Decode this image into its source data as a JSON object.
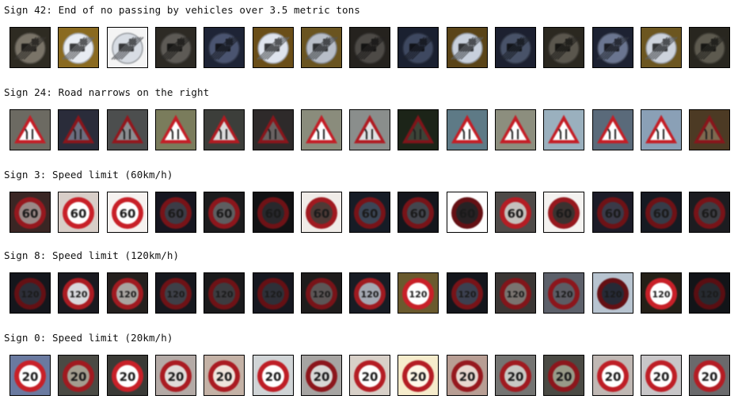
{
  "groups": [
    {
      "label": "Sign 42: End of no passing by vehicles over 3.5 metric tons",
      "kind": "end-no-passing",
      "images": [
        {
          "bg": "#2e2b22",
          "fg": "#7a7468",
          "b": 0.85
        },
        {
          "bg": "#8a6a20",
          "fg": "#e8ecf2",
          "b": 1.0
        },
        {
          "bg": "#f4f4f4",
          "fg": "#d8dde4",
          "b": 1.0
        },
        {
          "bg": "#2d2a24",
          "fg": "#5d5a55",
          "b": 0.75
        },
        {
          "bg": "#1e2436",
          "fg": "#4a5470",
          "b": 0.8
        },
        {
          "bg": "#6a4e18",
          "fg": "#dfe4ee",
          "b": 1.0
        },
        {
          "bg": "#6a5420",
          "fg": "#b8bec8",
          "b": 0.95
        },
        {
          "bg": "#25221e",
          "fg": "#4d4a46",
          "b": 0.75
        },
        {
          "bg": "#1a2030",
          "fg": "#3e4860",
          "b": 0.75
        },
        {
          "bg": "#5a4418",
          "fg": "#c8d0dc",
          "b": 0.95
        },
        {
          "bg": "#1c2030",
          "fg": "#485268",
          "b": 0.8
        },
        {
          "bg": "#2b2820",
          "fg": "#5a564d",
          "b": 0.75
        },
        {
          "bg": "#1d2232",
          "fg": "#6a7590",
          "b": 0.85
        },
        {
          "bg": "#6c5620",
          "fg": "#cdd3dc",
          "b": 1.0
        },
        {
          "bg": "#28261f",
          "fg": "#5d5a4f",
          "b": 0.8
        }
      ]
    },
    {
      "label": "Sign 24: Road narrows on the right",
      "kind": "triangle",
      "images": [
        {
          "bg": "#6c6a62",
          "fg": "#ffffff",
          "b": 1.0
        },
        {
          "bg": "#2a2c3a",
          "fg": "#6c6e80",
          "b": 0.7
        },
        {
          "bg": "#4c4e4e",
          "fg": "#8c8e92",
          "b": 0.75
        },
        {
          "bg": "#7a7c5c",
          "fg": "#ffffff",
          "b": 1.0
        },
        {
          "bg": "#3c3e3a",
          "fg": "#dcdcdc",
          "b": 0.9
        },
        {
          "bg": "#2e2a2a",
          "fg": "#6a6262",
          "b": 0.7
        },
        {
          "bg": "#8a8c7c",
          "fg": "#ffffff",
          "b": 1.0
        },
        {
          "bg": "#8a8e8c",
          "fg": "#e0e2e4",
          "b": 0.9
        },
        {
          "bg": "#1c2418",
          "fg": "#3c4438",
          "b": 0.65
        },
        {
          "bg": "#5e7a86",
          "fg": "#ffffff",
          "b": 1.0
        },
        {
          "bg": "#8c8e7e",
          "fg": "#ffffff",
          "b": 1.0
        },
        {
          "bg": "#9ab0be",
          "fg": "#ffffff",
          "b": 1.0
        },
        {
          "bg": "#5a6a7a",
          "fg": "#ffffff",
          "b": 1.0
        },
        {
          "bg": "#8aa0b6",
          "fg": "#ffffff",
          "b": 1.0
        },
        {
          "bg": "#4c3a24",
          "fg": "#7e6a50",
          "b": 0.7
        }
      ]
    },
    {
      "label": "Sign 3: Speed limit (60km/h)",
      "kind": "speed",
      "text": "60",
      "images": [
        {
          "bg": "#3a2624",
          "fg": "#9a8886",
          "b": 0.75
        },
        {
          "bg": "#d8cec8",
          "fg": "#ffffff",
          "b": 1.0
        },
        {
          "bg": "#f6f2f0",
          "fg": "#ffffff",
          "b": 1.0
        },
        {
          "bg": "#161620",
          "fg": "#3c3c46",
          "b": 0.6
        },
        {
          "bg": "#1c1c1e",
          "fg": "#5e5e60",
          "b": 0.7
        },
        {
          "bg": "#121214",
          "fg": "#28282c",
          "b": 0.55
        },
        {
          "bg": "#f0ece8",
          "fg": "#4e3a36",
          "b": 0.8
        },
        {
          "bg": "#161c26",
          "fg": "#3c4656",
          "b": 0.6
        },
        {
          "bg": "#14161c",
          "fg": "#44464e",
          "b": 0.6
        },
        {
          "bg": "#fefefe",
          "fg": "#262224",
          "b": 0.5
        },
        {
          "bg": "#4e4a48",
          "fg": "#c4c0bc",
          "b": 0.9
        },
        {
          "bg": "#f4f2f0",
          "fg": "#3a3230",
          "b": 0.75
        },
        {
          "bg": "#1c1c28",
          "fg": "#3a3a48",
          "b": 0.55
        },
        {
          "bg": "#161a22",
          "fg": "#363c48",
          "b": 0.55
        },
        {
          "bg": "#1c1c20",
          "fg": "#3e3e44",
          "b": 0.6
        }
      ]
    },
    {
      "label": "Sign 8: Speed limit (120km/h)",
      "kind": "speed",
      "text": "120",
      "images": [
        {
          "bg": "#14161c",
          "fg": "#2c2e38",
          "b": 0.5
        },
        {
          "bg": "#1a1a20",
          "fg": "#d8d8dc",
          "b": 0.85
        },
        {
          "bg": "#24201e",
          "fg": "#a8a4a0",
          "b": 0.8
        },
        {
          "bg": "#16181e",
          "fg": "#3e4048",
          "b": 0.55
        },
        {
          "bg": "#1a1a1c",
          "fg": "#3c3c40",
          "b": 0.55
        },
        {
          "bg": "#161820",
          "fg": "#2e3038",
          "b": 0.5
        },
        {
          "bg": "#1e1c1c",
          "fg": "#5c5656",
          "b": 0.6
        },
        {
          "bg": "#181c24",
          "fg": "#a4a8b2",
          "b": 0.8
        },
        {
          "bg": "#6a5a2e",
          "fg": "#ffffff",
          "b": 1.0
        },
        {
          "bg": "#14161c",
          "fg": "#3c4050",
          "b": 0.6
        },
        {
          "bg": "#3a3634",
          "fg": "#7a7470",
          "b": 0.65
        },
        {
          "bg": "#5c606a",
          "fg": "#5c5c64",
          "b": 0.7
        },
        {
          "bg": "#b8c4d0",
          "fg": "#262a36",
          "b": 0.5
        },
        {
          "bg": "#242018",
          "fg": "#ffffff",
          "b": 1.0
        },
        {
          "bg": "#121418",
          "fg": "#262a30",
          "b": 0.45
        }
      ]
    },
    {
      "label": "Sign 0: Speed limit (20km/h)",
      "kind": "speed",
      "text": "20",
      "images": [
        {
          "bg": "#6a7aa0",
          "fg": "#ffffff",
          "b": 1.0
        },
        {
          "bg": "#4a4a44",
          "fg": "#a49e90",
          "b": 0.8
        },
        {
          "bg": "#3a3a36",
          "fg": "#ffffff",
          "b": 1.0
        },
        {
          "bg": "#b4aaa6",
          "fg": "#e0dcda",
          "b": 0.85
        },
        {
          "bg": "#c4b2a6",
          "fg": "#efe4dc",
          "b": 0.85
        },
        {
          "bg": "#d0d4d6",
          "fg": "#ffffff",
          "b": 0.95
        },
        {
          "bg": "#a6a4a2",
          "fg": "#d8d8d6",
          "b": 0.7
        },
        {
          "bg": "#d8d0c8",
          "fg": "#ffffff",
          "b": 0.9
        },
        {
          "bg": "#f6eccc",
          "fg": "#fff8e8",
          "b": 0.9
        },
        {
          "bg": "#b89e94",
          "fg": "#e8d8d0",
          "b": 0.75
        },
        {
          "bg": "#747472",
          "fg": "#c8c8c4",
          "b": 0.8
        },
        {
          "bg": "#4a4a44",
          "fg": "#989a88",
          "b": 0.7
        },
        {
          "bg": "#c0b8b4",
          "fg": "#ffffff",
          "b": 0.95
        },
        {
          "bg": "#c8c6c8",
          "fg": "#ffffff",
          "b": 0.95
        },
        {
          "bg": "#6a6a6c",
          "fg": "#ffffff",
          "b": 0.9
        }
      ]
    }
  ]
}
